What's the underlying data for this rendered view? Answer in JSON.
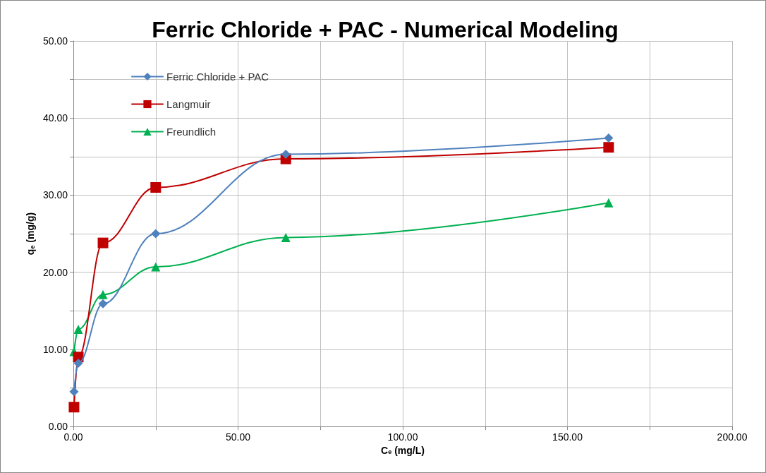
{
  "chart_data": {
    "type": "line",
    "title": "Ferric Chloride + PAC - Numerical Modeling",
    "xlabel": "C$_{e}$ (mg/L)",
    "ylabel": "q$_{e}$ (mg/g)",
    "xlim": [
      0,
      200
    ],
    "xticks": [
      {
        "value": 0,
        "label": "0.00"
      },
      {
        "value": 25,
        "label": null
      },
      {
        "value": 50,
        "label": "50.00"
      },
      {
        "value": 75,
        "label": null
      },
      {
        "value": 100,
        "label": "100.00"
      },
      {
        "value": 125,
        "label": null
      },
      {
        "value": 150,
        "label": "150.00"
      },
      {
        "value": 175,
        "label": null
      },
      {
        "value": 200,
        "label": "200.00"
      }
    ],
    "ylim": [
      0,
      50
    ],
    "yticks": [
      {
        "value": 0,
        "label": "0.00"
      },
      {
        "value": 5,
        "label": null
      },
      {
        "value": 10,
        "label": "10.00"
      },
      {
        "value": 15,
        "label": null
      },
      {
        "value": 20,
        "label": "20.00"
      },
      {
        "value": 25,
        "label": null
      },
      {
        "value": 30,
        "label": "30.00"
      },
      {
        "value": 35,
        "label": null
      },
      {
        "value": 40,
        "label": "40.00"
      },
      {
        "value": 45,
        "label": null
      },
      {
        "value": 50,
        "label": "50.00"
      }
    ],
    "grid": true,
    "legend": "top left",
    "line_style": "solid",
    "series": [
      {
        "name": "Ferric Chloride + PAC",
        "color": "#4f81bd",
        "marker": "diamond",
        "x": [
          0.2,
          1.5,
          9,
          25,
          64.5,
          162.5
        ],
        "values": [
          4.5,
          8.2,
          15.9,
          25.0,
          35.3,
          37.4
        ]
      },
      {
        "name": "Langmuir",
        "color": "#c00000",
        "marker": "square",
        "x": [
          0.2,
          1.5,
          9,
          25,
          64.5,
          162.5
        ],
        "values": [
          2.5,
          9.0,
          23.8,
          31.0,
          34.7,
          36.2
        ]
      },
      {
        "name": "Freundlich",
        "color": "#00b050",
        "marker": "triangle",
        "x": [
          0.2,
          1.5,
          9,
          25,
          64.5,
          162.5
        ],
        "values": [
          9.7,
          12.6,
          17.1,
          20.7,
          24.5,
          29.0
        ]
      }
    ]
  }
}
